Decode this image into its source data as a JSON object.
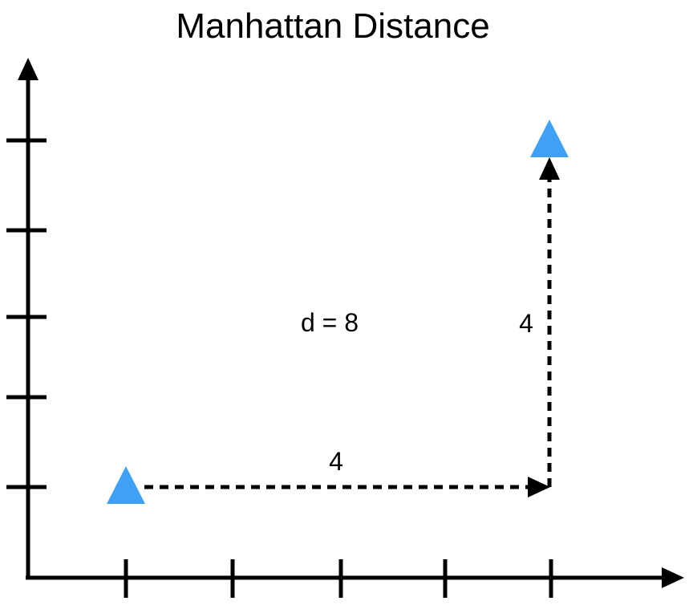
{
  "title": "Manhattan Distance",
  "distance_label": "d = 8",
  "horizontal_segment_label": "4",
  "vertical_segment_label": "4",
  "colors": {
    "point": "#3fa0f5",
    "axis": "#000000",
    "path": "#000000"
  },
  "points": {
    "start": {
      "x": 1,
      "y": 1
    },
    "end": {
      "x": 5,
      "y": 5
    }
  },
  "icons": {
    "start_point": "triangle-marker",
    "end_point": "triangle-marker"
  }
}
